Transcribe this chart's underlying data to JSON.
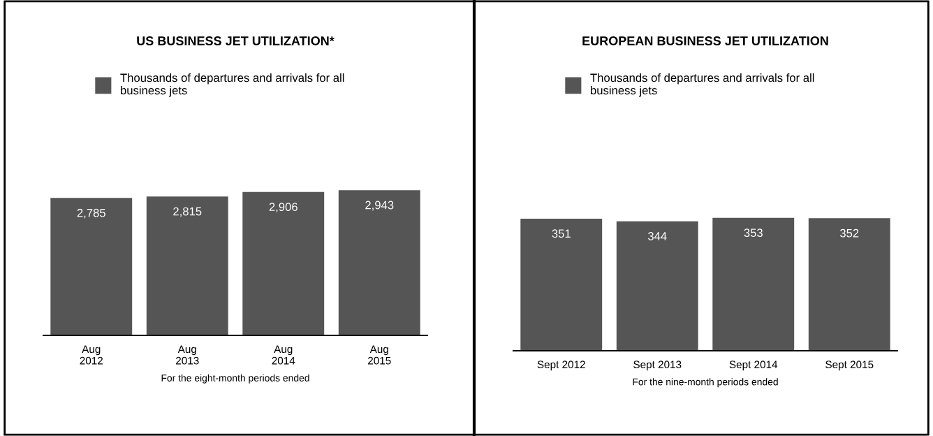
{
  "chart_data": [
    {
      "type": "bar",
      "title": "US BUSINESS JET UTILIZATION*",
      "xlabel": "For the eight-month periods ended",
      "categories": [
        "Aug\n2012",
        "Aug\n2013",
        "Aug\n2014",
        "Aug\n2015"
      ],
      "series": [
        {
          "name": "Thousands of departures and arrivals for all business jets",
          "color": "#555555",
          "values": [
            2785,
            2815,
            2906,
            2943
          ],
          "value_labels": [
            "2,785",
            "2,815",
            "2,906",
            "2,943"
          ]
        }
      ],
      "legend": "top left",
      "grid": false
    },
    {
      "type": "bar",
      "title": "EUROPEAN BUSINESS JET UTILIZATION",
      "xlabel": "For the nine-month periods ended",
      "categories": [
        "Sept 2012",
        "Sept 2013",
        "Sept 2014",
        "Sept 2015"
      ],
      "series": [
        {
          "name": "Thousands of departures and arrivals for all business jets",
          "color": "#555555",
          "values": [
            351,
            344,
            353,
            352
          ]
        }
      ],
      "data_labels": true,
      "legend": "top left",
      "grid": false
    }
  ]
}
